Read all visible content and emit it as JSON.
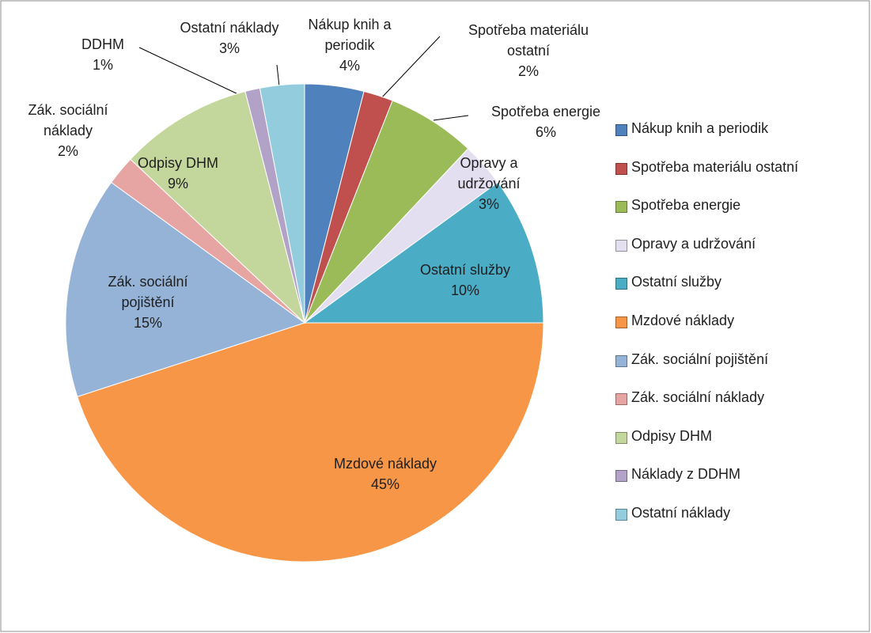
{
  "chart_data": {
    "type": "pie",
    "categories": [
      "Nákup knih a periodik",
      "Spotřeba materiálu ostatní",
      "Spotřeba energie",
      "Opravy a udržování",
      "Ostatní služby",
      "Mzdové náklady",
      "Zák. sociální pojištění",
      "Zák. sociální náklady",
      "Odpisy DHM",
      "Náklady z DDHM",
      "Ostatní náklady"
    ],
    "values": [
      4,
      2,
      6,
      3,
      10,
      45,
      15,
      2,
      9,
      1,
      3
    ],
    "value_labels": [
      "4%",
      "2%",
      "6%",
      "3%",
      "10%",
      "45%",
      "15%",
      "2%",
      "9%",
      "1%",
      "3%"
    ],
    "data_label_names": [
      "Nákup knih a periodik",
      "Spotřeba materiálu ostatní",
      "Spotřeba energie",
      "Opravy a udržování",
      "Ostatní služby",
      "Mzdové náklady",
      "Zák. sociální pojištění",
      "Zák. sociální náklady",
      "Odpisy DHM",
      "DDHM",
      "Ostatní náklady"
    ],
    "colors": [
      "#4f81bd",
      "#c0504d",
      "#9bbb59",
      "#e4dff0",
      "#4bacc6",
      "#f79646",
      "#95b3d7",
      "#e6a5a3",
      "#c3d69b",
      "#b3a2c7",
      "#93cddd"
    ],
    "legend": "right"
  }
}
